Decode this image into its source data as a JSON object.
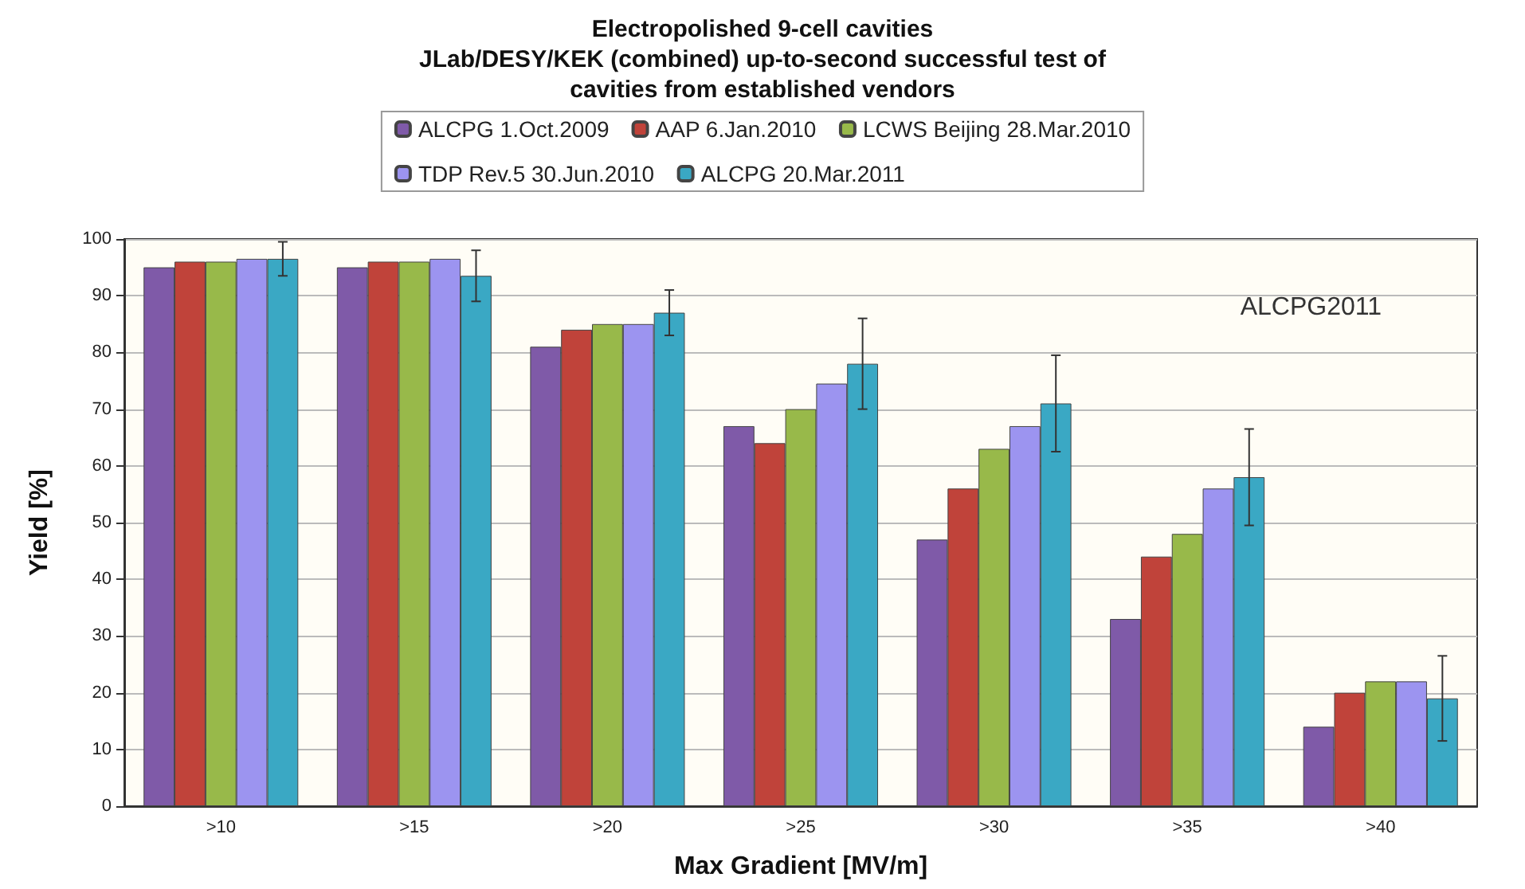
{
  "chart_data": {
    "type": "bar",
    "title": "Electropolished 9-cell cavities\nJLab/DESY/KEK (combined) up-to-second successful test of\ncavities from established vendors",
    "xlabel": "Max Gradient [MV/m]",
    "ylabel": "Yield [%]",
    "categories": [
      ">10",
      ">15",
      ">20",
      ">25",
      ">30",
      ">35",
      ">40"
    ],
    "series": [
      {
        "name": "ALCPG 1.Oct.2009",
        "color": "#7f5aa8",
        "values": [
          95,
          95,
          81,
          67,
          47,
          33,
          14
        ]
      },
      {
        "name": "AAP 6.Jan.2010",
        "color": "#c0433a",
        "values": [
          96,
          96,
          84,
          64,
          56,
          44,
          20
        ]
      },
      {
        "name": "LCWS Beijing 28.Mar.2010",
        "color": "#98b94a",
        "values": [
          96,
          96,
          85,
          70,
          63,
          48,
          22
        ]
      },
      {
        "name": "TDP Rev.5 30.Jun.2010",
        "color": "#9c94f0",
        "values": [
          96.5,
          96.5,
          85,
          74.5,
          67,
          56,
          22
        ]
      },
      {
        "name": "ALCPG 20.Mar.2011",
        "color": "#3aa8c4",
        "values": [
          96.5,
          93.5,
          87,
          78,
          71,
          58,
          19
        ],
        "errors": [
          3,
          4.5,
          4,
          8,
          8.5,
          8.5,
          7.5
        ]
      }
    ],
    "ylim": [
      0,
      100
    ],
    "yticks": [
      0,
      10,
      20,
      30,
      40,
      50,
      60,
      70,
      80,
      90,
      100
    ],
    "grid": "y",
    "legend": "top",
    "annotations": [
      "ALCPG2011"
    ]
  }
}
